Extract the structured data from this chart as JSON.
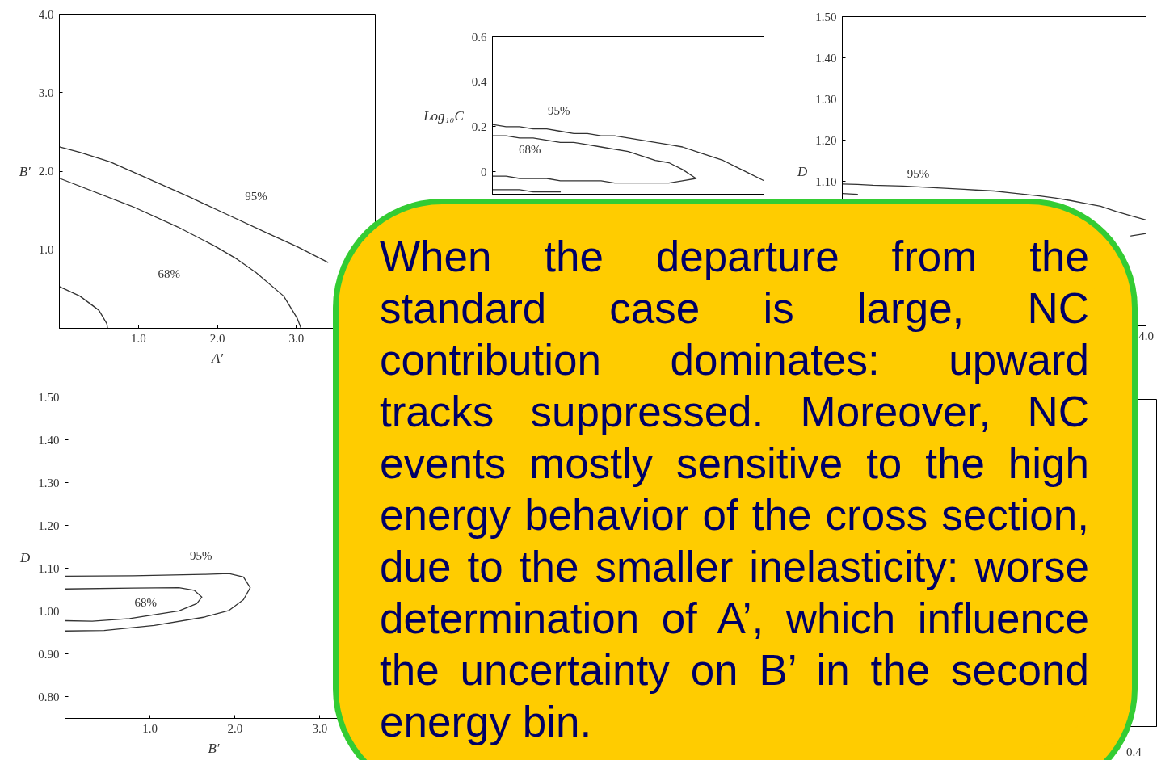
{
  "chart_data": [
    {
      "type": "line",
      "xlabel": "A′",
      "ylabel": "B′",
      "xlim": [
        0,
        4
      ],
      "ylim": [
        0,
        4
      ],
      "xticks": [
        {
          "value": 1,
          "label": "1.0"
        },
        {
          "value": 2,
          "label": "2.0"
        },
        {
          "value": 3,
          "label": "3.0"
        }
      ],
      "yticks": [
        {
          "value": 1,
          "label": "1.0"
        },
        {
          "value": 2,
          "label": "2.0"
        },
        {
          "value": 3,
          "label": "3.0"
        },
        {
          "value": 4,
          "label": "4.0"
        }
      ],
      "series": [
        {
          "color": "#333333",
          "x": [
            0,
            0.26,
            0.64,
            1.0,
            1.63,
            2.1,
            2.66,
            3.01,
            3.4
          ],
          "values": [
            2.31,
            2.24,
            2.12,
            1.96,
            1.68,
            1.46,
            1.2,
            1.04,
            0.84
          ]
        },
        {
          "color": "#333333",
          "x": [
            0,
            0.95,
            1.5,
            1.98,
            2.25,
            2.49,
            2.84,
            3.01,
            3.06
          ],
          "values": [
            1.91,
            1.54,
            1.29,
            1.04,
            0.88,
            0.71,
            0.41,
            0.13,
            0
          ]
        },
        {
          "color": "#333333",
          "x": [
            0,
            0.26,
            0.5,
            0.6,
            0.61
          ],
          "values": [
            0.53,
            0.41,
            0.23,
            0.06,
            0
          ]
        }
      ],
      "annotations": [
        "95%",
        "68%"
      ]
    },
    {
      "type": "line",
      "ylabel": "Log₁₀C",
      "ylim": [
        -0.1,
        0.6
      ],
      "yticks": [
        0,
        0.2,
        0.4,
        0.6
      ],
      "categories": [
        null,
        null,
        null,
        null,
        null,
        null,
        null,
        null,
        null,
        null,
        null,
        null,
        null,
        null,
        null,
        null,
        null,
        null,
        null,
        null,
        null
      ],
      "series": [
        {
          "color": "#333333",
          "values": [
            0.21,
            0.2,
            0.2,
            0.19,
            0.19,
            0.18,
            0.17,
            0.17,
            0.16,
            0.16,
            0.15,
            0.14,
            0.13,
            0.12,
            0.11,
            0.09,
            0.07,
            0.05,
            0.02,
            -0.01,
            -0.04
          ]
        },
        {
          "color": "#333333",
          "values": [
            0.16,
            0.16,
            0.15,
            0.15,
            0.14,
            0.13,
            0.13,
            0.12,
            0.11,
            0.1,
            0.09,
            0.07,
            0.05,
            0.04,
            0.01,
            -0.03,
            null,
            null,
            null,
            null,
            null
          ]
        },
        {
          "color": "#333333",
          "values": [
            -0.02,
            -0.02,
            -0.03,
            -0.03,
            -0.03,
            -0.04,
            -0.04,
            -0.04,
            -0.04,
            -0.05,
            -0.05,
            -0.05,
            -0.05,
            -0.05,
            -0.04,
            -0.03,
            null,
            null,
            null,
            null,
            null
          ]
        },
        {
          "color": "#333333",
          "values": [
            -0.08,
            -0.08,
            -0.08,
            -0.09,
            -0.09,
            -0.09,
            null,
            null,
            null,
            null,
            null,
            null,
            null,
            null,
            null,
            null,
            null,
            null,
            null,
            null,
            null
          ]
        }
      ],
      "annotations": [
        "95%",
        "68%"
      ]
    },
    {
      "type": "line",
      "ylabel": "D",
      "ylim": [
        0.75,
        1.5
      ],
      "yticks": [
        {
          "value": 1.1,
          "label": "1.10"
        },
        {
          "value": 1.2,
          "label": "1.20"
        },
        {
          "value": 1.3,
          "label": "1.30"
        },
        {
          "value": 1.4,
          "label": "1.40"
        },
        {
          "value": 1.5,
          "label": "1.50"
        }
      ],
      "categories": [
        null,
        null,
        null,
        null,
        null,
        null,
        null,
        null,
        null,
        null,
        null,
        null,
        null,
        null,
        null,
        null,
        null,
        null,
        null,
        null,
        "4.0"
      ],
      "series": [
        {
          "color": "#333333",
          "values": [
            1.094,
            1.093,
            1.091,
            1.09,
            1.089,
            1.087,
            1.085,
            1.083,
            1.081,
            1.079,
            1.077,
            1.073,
            1.069,
            1.065,
            1.06,
            1.054,
            1.047,
            1.04,
            1.028,
            1.017,
            1.007
          ]
        },
        {
          "color": "#333333",
          "values": [
            null,
            null,
            null,
            null,
            null,
            null,
            null,
            null,
            null,
            null,
            null,
            null,
            null,
            null,
            null,
            null,
            null,
            null,
            null,
            0.968,
            0.974
          ]
        },
        {
          "color": "#333333",
          "values": [
            1.071,
            1.069,
            null,
            null,
            null,
            null,
            null,
            null,
            null,
            null,
            null,
            null,
            null,
            null,
            null,
            null,
            null,
            null,
            null,
            null,
            null
          ]
        }
      ],
      "annotations": [
        "95%"
      ]
    },
    {
      "type": "line",
      "xlabel": "B′",
      "ylabel": "D",
      "xlim": [
        0,
        3.5
      ],
      "ylim": [
        0.75,
        1.5
      ],
      "xticks": [
        {
          "value": 1,
          "label": "1.0"
        },
        {
          "value": 2,
          "label": "2.0"
        },
        {
          "value": 3,
          "label": "3.0"
        }
      ],
      "yticks": [
        {
          "value": 0.8,
          "label": "0.80"
        },
        {
          "value": 0.9,
          "label": "0.90"
        },
        {
          "value": 1,
          "label": "1.00"
        },
        {
          "value": 1.1,
          "label": "1.10"
        },
        {
          "value": 1.2,
          "label": "1.20"
        },
        {
          "value": 1.3,
          "label": "1.30"
        },
        {
          "value": 1.4,
          "label": "1.40"
        },
        {
          "value": 1.5,
          "label": "1.50"
        }
      ],
      "series": [
        {
          "color": "#333333",
          "x": [
            0,
            0.8,
            1.63,
            1.93,
            2.1,
            2.18,
            2.1,
            1.93,
            1.63,
            1.05,
            0.46,
            0
          ],
          "values": [
            1.082,
            1.083,
            1.086,
            1.088,
            1.08,
            1.055,
            1.027,
            1.002,
            0.986,
            0.967,
            0.955,
            0.954
          ]
        },
        {
          "color": "#333333",
          "x": [
            0,
            0.8,
            1.34,
            1.52,
            1.61,
            1.55,
            1.34,
            0.76,
            0.32,
            0
          ],
          "values": [
            1.052,
            1.054,
            1.055,
            1.049,
            1.033,
            1.018,
            1.001,
            0.983,
            0.977,
            0.978
          ]
        }
      ],
      "annotations": [
        "95%",
        "68%"
      ]
    },
    {
      "type": "other",
      "annotations": [
        "0.4"
      ]
    },
    {
      "type": "other",
      "annotations": [
        "When the departure from the standard case is large, NC contribution dominates: upward tracks suppressed. Moreover, NC events mostly sensitive to the high energy behavior of the cross section, due to the smaller inelasticity: worse determination of A’, which influence the uncertainty on B’ in the second energy bin."
      ]
    }
  ]
}
